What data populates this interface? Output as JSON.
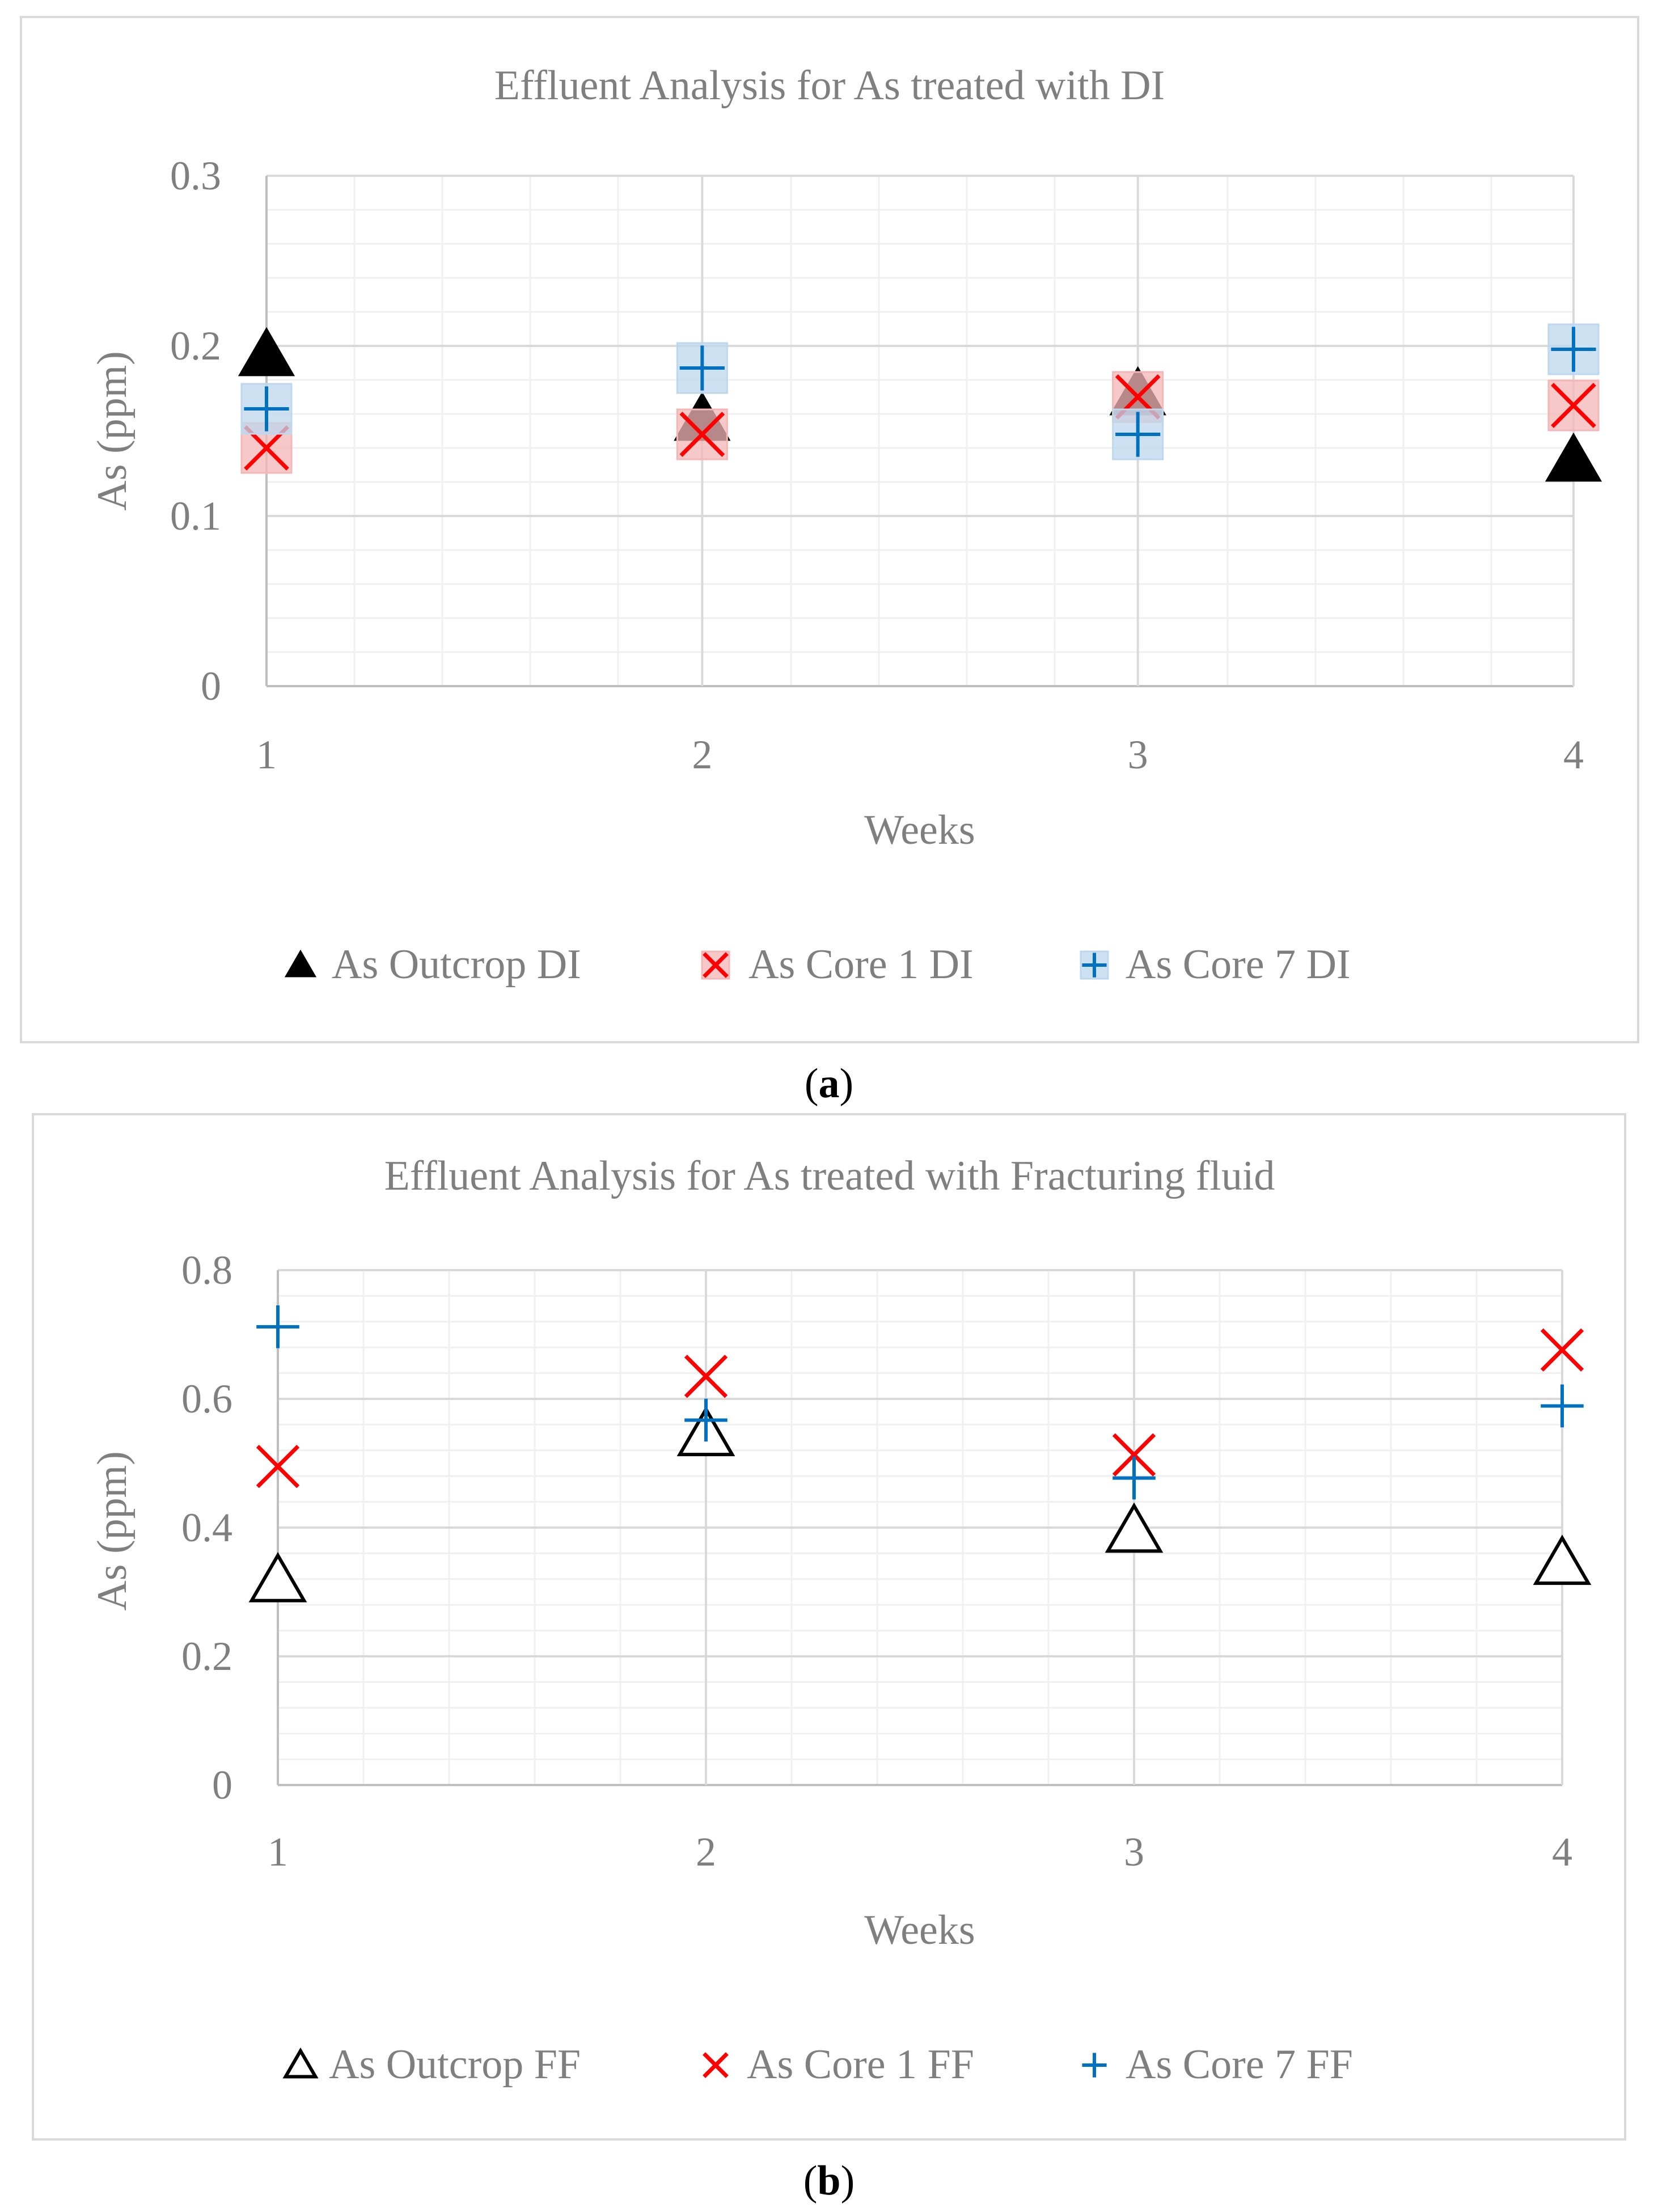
{
  "chart_data": [
    {
      "type": "scatter",
      "id": "a",
      "caption": "a",
      "title": "Effluent Analysis for As treated with DI",
      "xlabel": "Weeks",
      "ylabel": "As (ppm)",
      "x_ticks": [
        "1",
        "2",
        "3",
        "4"
      ],
      "xlim": [
        1,
        4
      ],
      "ylim": [
        0,
        0.3
      ],
      "y_ticks": [
        "0",
        "0.1",
        "0.2",
        "0.3"
      ],
      "y_tick_values": [
        0,
        0.1,
        0.2,
        0.3
      ],
      "grid": true,
      "legend_position": "bottom",
      "series": [
        {
          "name": "As Outcrop DI",
          "marker": "triangle-filled",
          "color": "#000000",
          "x": [
            1,
            2,
            3,
            4
          ],
          "y": [
            0.195,
            0.157,
            0.172,
            0.133
          ]
        },
        {
          "name": "As Core 1 DI",
          "marker": "x-boxed",
          "color": "#ff0000",
          "fill": "#f4b6b6",
          "x": [
            1,
            2,
            3,
            4
          ],
          "y": [
            0.14,
            0.148,
            0.17,
            0.165
          ]
        },
        {
          "name": "As Core 7 DI",
          "marker": "plus-boxed",
          "color": "#0070c0",
          "fill": "#bdd7ee",
          "x": [
            1,
            2,
            3,
            4
          ],
          "y": [
            0.163,
            0.187,
            0.148,
            0.198
          ]
        }
      ]
    },
    {
      "type": "scatter",
      "id": "b",
      "caption": "b",
      "title": "Effluent Analysis for As treated with Fracturing fluid",
      "xlabel": "Weeks",
      "ylabel": "As (ppm)",
      "x_ticks": [
        "1",
        "2",
        "3",
        "4"
      ],
      "xlim": [
        1,
        4
      ],
      "ylim": [
        0,
        0.8
      ],
      "y_ticks": [
        "0",
        "0.2",
        "0.4",
        "0.6",
        "0.8"
      ],
      "y_tick_values": [
        0,
        0.2,
        0.4,
        0.6,
        0.8
      ],
      "grid": true,
      "legend_position": "bottom",
      "series": [
        {
          "name": "As Outcrop FF",
          "marker": "triangle-open",
          "color": "#000000",
          "x": [
            1,
            2,
            3,
            4
          ],
          "y": [
            0.318,
            0.545,
            0.395,
            0.345
          ]
        },
        {
          "name": "As Core 1 FF",
          "marker": "x",
          "color": "#ff0000",
          "x": [
            1,
            2,
            3,
            4
          ],
          "y": [
            0.495,
            0.635,
            0.513,
            0.676
          ]
        },
        {
          "name": "As Core 7 FF",
          "marker": "plus",
          "color": "#0070c0",
          "x": [
            1,
            2,
            3,
            4
          ],
          "y": [
            0.712,
            0.567,
            0.477,
            0.589
          ]
        }
      ]
    }
  ]
}
